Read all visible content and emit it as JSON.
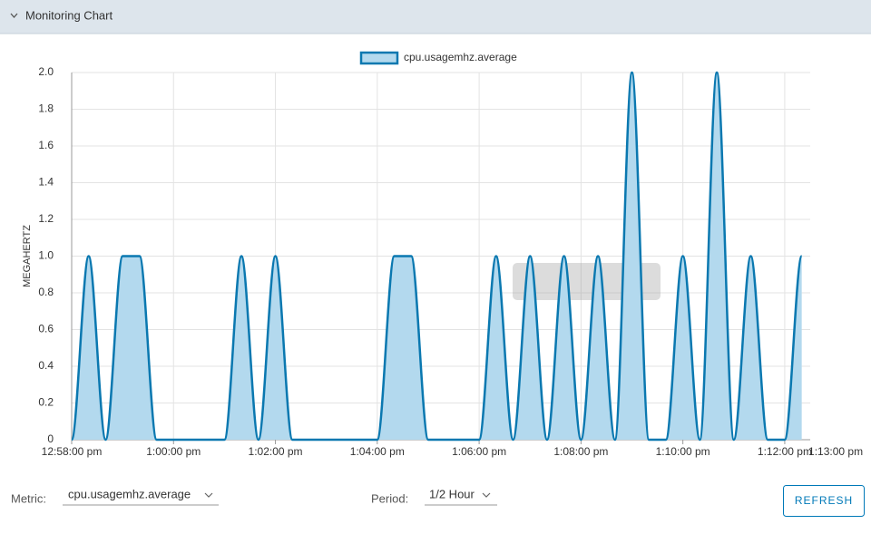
{
  "header": {
    "title": "Monitoring Chart"
  },
  "chart_data": {
    "type": "area",
    "ylabel": "MEGAHERTZ",
    "legend": "top",
    "grid": true,
    "x": [
      "12:58:00 pm",
      "12:58:20 pm",
      "12:58:40 pm",
      "12:59:00 pm",
      "12:59:20 pm",
      "12:59:40 pm",
      "1:00:00 pm",
      "1:00:20 pm",
      "1:00:40 pm",
      "1:01:00 pm",
      "1:01:20 pm",
      "1:01:40 pm",
      "1:02:00 pm",
      "1:02:20 pm",
      "1:02:40 pm",
      "1:03:00 pm",
      "1:03:20 pm",
      "1:03:40 pm",
      "1:04:00 pm",
      "1:04:20 pm",
      "1:04:40 pm",
      "1:05:00 pm",
      "1:05:20 pm",
      "1:05:40 pm",
      "1:06:00 pm",
      "1:06:20 pm",
      "1:06:40 pm",
      "1:07:00 pm",
      "1:07:20 pm",
      "1:07:40 pm",
      "1:08:00 pm",
      "1:08:20 pm",
      "1:08:40 pm",
      "1:09:00 pm",
      "1:09:20 pm",
      "1:09:40 pm",
      "1:10:00 pm",
      "1:10:20 pm",
      "1:10:40 pm",
      "1:11:00 pm",
      "1:11:20 pm",
      "1:11:40 pm",
      "1:12:00 pm",
      "1:12:20 pm"
    ],
    "series": [
      {
        "name": "cpu.usagemhz.average",
        "color": "#0a78b0",
        "fill": "#b3d9ee",
        "values": [
          0,
          1,
          0,
          1,
          1,
          0,
          0,
          0,
          0,
          0,
          1,
          0,
          1,
          0,
          0,
          0,
          0,
          0,
          0,
          1,
          1,
          0,
          0,
          0,
          0,
          1,
          0,
          1,
          0,
          1,
          0,
          1,
          0,
          2,
          0,
          0,
          1,
          0,
          2,
          0,
          1,
          0,
          0,
          1
        ]
      }
    ],
    "xlim": [
      "12:58:00 pm",
      "1:12:30 pm"
    ],
    "xticks": [
      "12:58:00 pm",
      "1:00:00 pm",
      "1:02:00 pm",
      "1:04:00 pm",
      "1:06:00 pm",
      "1:08:00 pm",
      "1:10:00 pm",
      "1:12:00 pm",
      "1:13:00 pm"
    ],
    "ylim": [
      0,
      2
    ],
    "yticks": [
      0,
      0.2,
      0.4,
      0.6,
      0.8,
      {
        "value": 1,
        "label": "1.0"
      },
      1.2,
      1.4,
      1.6,
      1.8,
      {
        "value": 2,
        "label": "2.0"
      }
    ]
  },
  "controls": {
    "metric_label": "Metric:",
    "metric_value": "cpu.usagemhz.average",
    "period_label": "Period:",
    "period_value": "1/2 Hour",
    "refresh": "REFRESH"
  }
}
